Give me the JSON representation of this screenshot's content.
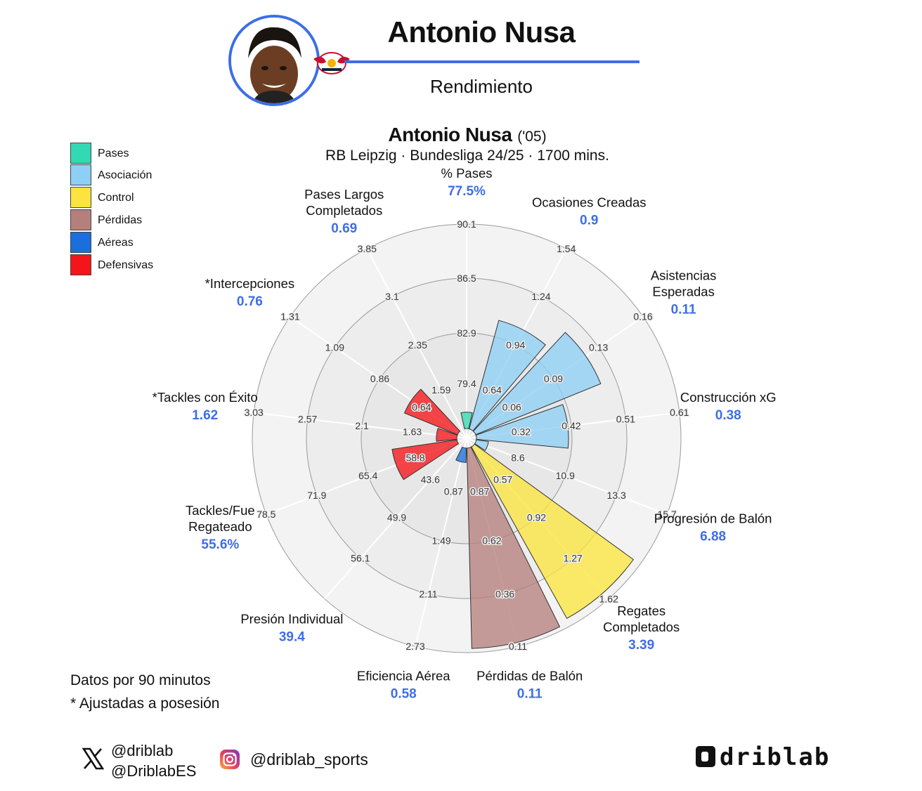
{
  "header": {
    "player_name": "Antonio Nusa",
    "subtitle": "Rendimiento"
  },
  "legend": [
    {
      "label": "Pases",
      "color": "#33d9b2"
    },
    {
      "label": "Asociación",
      "color": "#8ecff5"
    },
    {
      "label": "Control",
      "color": "#fbe43f"
    },
    {
      "label": "Pérdidas",
      "color": "#b5807c"
    },
    {
      "label": "Aéreas",
      "color": "#1a6fdc"
    },
    {
      "label": "Defensivas",
      "color": "#f5141a"
    }
  ],
  "chart_data": {
    "type": "polar-bar",
    "title": "Antonio Nusa",
    "title_note": "('05)",
    "subtitle": "RB Leipzig · Bundesliga 24/25 · 1700 mins.",
    "grid": true,
    "metrics": [
      {
        "name": "% Pases",
        "value": "77.5%",
        "percentile": 0.08,
        "category": "Pases",
        "ticks": [
          "79.4",
          "82.9",
          "86.5",
          "90.1"
        ]
      },
      {
        "name": "Ocasiones Creadas",
        "value": "0.9",
        "percentile": 0.55,
        "category": "Asociación",
        "ticks": [
          "0.64",
          "0.94",
          "1.24",
          "1.54"
        ]
      },
      {
        "name": "Asistencias Esperadas",
        "value": "0.11",
        "percentile": 0.66,
        "category": "Asociación",
        "ticks": [
          "0.06",
          "0.09",
          "0.13",
          "0.16"
        ]
      },
      {
        "name": "Construcción xG",
        "value": "0.38",
        "percentile": 0.45,
        "category": "Asociación",
        "ticks": [
          "0.32",
          "0.42",
          "0.51",
          "0.61"
        ]
      },
      {
        "name": "Progresión de Balón",
        "value": "6.88",
        "percentile": 0.06,
        "category": "Asociación",
        "ticks": [
          "8.6",
          "10.9",
          "13.3",
          "15.7"
        ]
      },
      {
        "name": "Regates Completados",
        "value": "3.39",
        "percentile": 0.96,
        "category": "Control",
        "ticks": [
          "0.57",
          "0.92",
          "1.27",
          "1.62"
        ]
      },
      {
        "name": "Pérdidas de Balón",
        "value": "0.11",
        "percentile": 0.98,
        "category": "Pérdidas",
        "ticks": [
          "0.87",
          "0.62",
          "0.36",
          "0.11"
        ]
      },
      {
        "name": "Eficiencia Aérea",
        "value": "0.58",
        "percentile": 0.07,
        "category": "Aéreas",
        "ticks": [
          "0.87",
          "1.49",
          "2.11",
          "2.73"
        ]
      },
      {
        "name": "Presión Individual",
        "value": "39.4",
        "percentile": 0.0,
        "category": "Defensivas",
        "ticks": [
          "43.6",
          "49.9",
          "56.1"
        ]
      },
      {
        "name": "Tackles/Fue Regateado",
        "value": "55.6%",
        "percentile": 0.32,
        "category": "Defensivas",
        "ticks": [
          "58.8",
          "65.4",
          "71.9",
          "78.5"
        ]
      },
      {
        "name": "*Tackles con Éxito",
        "value": "1.62",
        "percentile": 0.1,
        "category": "Defensivas",
        "ticks": [
          "1.63",
          "2.1",
          "2.57",
          "3.03"
        ]
      },
      {
        "name": "*Intercepciones",
        "value": "0.76",
        "percentile": 0.28,
        "category": "Defensivas",
        "ticks": [
          "0.64",
          "0.86",
          "1.09",
          "1.31"
        ]
      },
      {
        "name": "Pases Largos Completados",
        "value": "0.69",
        "percentile": 0.0,
        "category": "Pases",
        "ticks": [
          "1.59",
          "2.35",
          "3.1",
          "3.85"
        ]
      }
    ]
  },
  "footnotes": {
    "line1": "Datos por 90 minutos",
    "line2": "* Ajustadas a posesión"
  },
  "social": {
    "x_icon": "x-logo-icon",
    "x_handle_1": "@driblab",
    "x_handle_2": "@DriblabES",
    "instagram_icon": "instagram-icon",
    "instagram_handle": "@driblab_sports",
    "brand": "driblab"
  }
}
